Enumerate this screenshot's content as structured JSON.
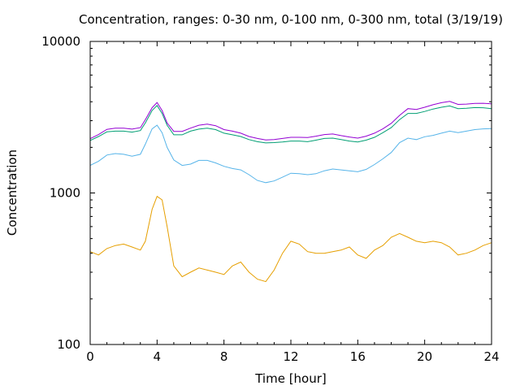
{
  "chart_data": {
    "type": "line",
    "title": "Concentration, ranges: 0-30 nm, 0-100 nm, 0-300 nm, total (3/19/19)",
    "xlabel": "Time [hour]",
    "ylabel": "Concentration",
    "xlim": [
      0,
      24
    ],
    "ylim": [
      100,
      10000
    ],
    "yscale": "log",
    "x_ticks": [
      "0",
      "4",
      "8",
      "12",
      "16",
      "20",
      "24"
    ],
    "y_ticks": [
      "100",
      "1000",
      "10000"
    ],
    "grid": false,
    "legend": "none",
    "x": [
      0,
      0.5,
      1,
      1.5,
      2,
      2.5,
      3,
      3.3,
      3.7,
      4,
      4.3,
      4.6,
      5,
      5.5,
      6,
      6.5,
      7,
      7.5,
      8,
      8.5,
      9,
      9.5,
      10,
      10.5,
      11,
      11.5,
      12,
      12.5,
      13,
      13.5,
      14,
      14.5,
      15,
      15.5,
      16,
      16.5,
      17,
      17.5,
      18,
      18.5,
      19,
      19.5,
      20,
      20.5,
      21,
      21.5,
      22,
      22.5,
      23,
      23.5,
      24
    ],
    "series": [
      {
        "color": "#e69f00",
        "values": [
          410,
          390,
          430,
          450,
          460,
          440,
          420,
          480,
          780,
          950,
          900,
          600,
          330,
          280,
          300,
          320,
          310,
          300,
          290,
          330,
          350,
          300,
          270,
          260,
          310,
          400,
          480,
          460,
          410,
          400,
          400,
          410,
          420,
          440,
          390,
          370,
          420,
          450,
          510,
          540,
          510,
          480,
          470,
          480,
          470,
          440,
          390,
          400,
          420,
          450,
          470
        ]
      },
      {
        "color": "#56b4e9",
        "values": [
          1520,
          1620,
          1780,
          1820,
          1800,
          1750,
          1800,
          2100,
          2650,
          2800,
          2500,
          2000,
          1650,
          1520,
          1550,
          1640,
          1640,
          1580,
          1500,
          1450,
          1420,
          1320,
          1210,
          1170,
          1200,
          1270,
          1350,
          1340,
          1320,
          1340,
          1400,
          1440,
          1420,
          1400,
          1380,
          1430,
          1540,
          1680,
          1850,
          2150,
          2300,
          2250,
          2350,
          2400,
          2480,
          2560,
          2500,
          2560,
          2620,
          2650,
          2660
        ]
      },
      {
        "color": "#009e73",
        "values": [
          2220,
          2360,
          2530,
          2560,
          2560,
          2520,
          2580,
          2900,
          3500,
          3780,
          3350,
          2800,
          2420,
          2420,
          2560,
          2640,
          2680,
          2620,
          2480,
          2420,
          2360,
          2250,
          2180,
          2140,
          2150,
          2170,
          2200,
          2200,
          2180,
          2230,
          2290,
          2300,
          2250,
          2200,
          2170,
          2230,
          2330,
          2500,
          2700,
          3050,
          3350,
          3350,
          3450,
          3580,
          3680,
          3750,
          3600,
          3620,
          3660,
          3650,
          3600
        ]
      },
      {
        "color": "#9400d3",
        "values": [
          2280,
          2430,
          2630,
          2680,
          2680,
          2640,
          2700,
          3050,
          3650,
          3950,
          3500,
          2900,
          2550,
          2550,
          2680,
          2800,
          2850,
          2780,
          2620,
          2560,
          2480,
          2360,
          2290,
          2240,
          2250,
          2290,
          2330,
          2330,
          2320,
          2370,
          2430,
          2450,
          2390,
          2340,
          2300,
          2370,
          2480,
          2650,
          2880,
          3250,
          3600,
          3560,
          3680,
          3820,
          3940,
          4020,
          3840,
          3860,
          3900,
          3910,
          3880
        ]
      }
    ]
  }
}
